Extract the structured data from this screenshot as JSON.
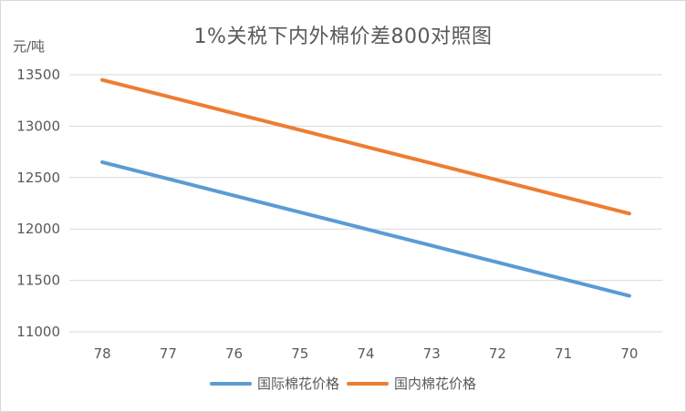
{
  "chart_data": {
    "type": "line",
    "title": "1%关税下内外棉价差800对照图",
    "ylabel": "元/吨",
    "xlabel": "",
    "categories": [
      "78",
      "77",
      "76",
      "75",
      "74",
      "73",
      "72",
      "71",
      "70"
    ],
    "ylim": [
      11000,
      13500
    ],
    "yticks": [
      11000,
      11500,
      12000,
      12500,
      13000,
      13500
    ],
    "grid": true,
    "legend_position": "bottom",
    "series": [
      {
        "name": "国际棉花价格",
        "color": "#5b9bd5",
        "values": [
          12650,
          12488,
          12325,
          12163,
          12000,
          11838,
          11675,
          11513,
          11350
        ]
      },
      {
        "name": "国内棉花价格",
        "color": "#ed7d31",
        "values": [
          13450,
          13288,
          13125,
          12963,
          12800,
          12638,
          12475,
          12313,
          12150
        ]
      }
    ]
  }
}
